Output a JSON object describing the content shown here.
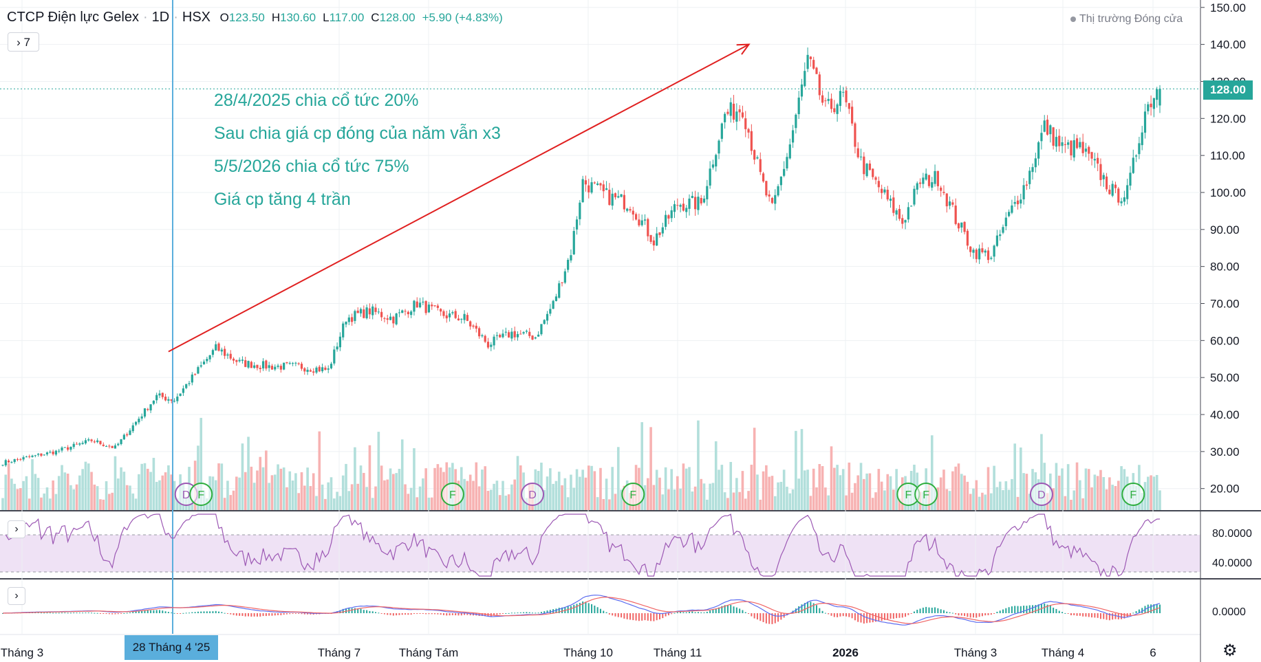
{
  "header": {
    "title": "CTCP Điện lực Gelex",
    "interval": "1D",
    "exchange": "HSX",
    "open_label": "O",
    "open_value": "123.50",
    "high_label": "H",
    "high_value": "130.60",
    "low_label": "L",
    "low_value": "117.00",
    "close_label": "C",
    "close_value": "128.00",
    "change": "+5.90 (+4.83%)"
  },
  "market_status": "Thị trường Đóng cửa",
  "collapse_label": "7",
  "annotations": [
    "28/4/2025 chia cổ tức 20%",
    "Sau chia giá cp đóng của năm vẫn x3",
    "5/5/2026 chia cổ tức 75%",
    "Giá cp tăng 4 trần"
  ],
  "last_price_label": "128.00",
  "crosshair_date_label": "28 Tháng 4 '25",
  "rsi_axis": [
    "80.0000",
    "40.0000"
  ],
  "macd_axis": [
    "0.0000"
  ],
  "colors": {
    "up": "#26a69a",
    "down": "#ef5350",
    "vol_up": "#b2dfdb",
    "vol_down": "#f7b2b2",
    "rsi_line": "#9c58b4",
    "rsi_band": "#efe2f5",
    "macd_line": "#5b6cf0",
    "signal_line": "#f06464",
    "trend_arrow": "#e02020",
    "crosshair": "#5aaedc"
  },
  "chart_data": {
    "type": "candlestick",
    "price_axis": {
      "ticks": [
        150,
        140,
        130,
        120,
        110,
        100,
        90,
        80,
        70,
        60,
        50,
        40,
        30,
        20
      ],
      "range": [
        14,
        152
      ]
    },
    "x_axis": {
      "labels": [
        "Tháng 3",
        "Tháng 7",
        "Tháng Tám",
        "Tháng 10",
        "Tháng 11",
        "2026",
        "Tháng 3",
        "Tháng 4",
        "6"
      ]
    },
    "close_anchors": [
      [
        0,
        27
      ],
      [
        18,
        30
      ],
      [
        30,
        33
      ],
      [
        38,
        31
      ],
      [
        44,
        37
      ],
      [
        52,
        45
      ],
      [
        58,
        44
      ],
      [
        64,
        50
      ],
      [
        72,
        58
      ],
      [
        80,
        54
      ],
      [
        90,
        53
      ],
      [
        100,
        53
      ],
      [
        110,
        52
      ],
      [
        116,
        66
      ],
      [
        124,
        68
      ],
      [
        132,
        66
      ],
      [
        140,
        70
      ],
      [
        148,
        67
      ],
      [
        156,
        66
      ],
      [
        164,
        59
      ],
      [
        172,
        62
      ],
      [
        180,
        61
      ],
      [
        186,
        70
      ],
      [
        192,
        84
      ],
      [
        196,
        103
      ],
      [
        204,
        99
      ],
      [
        212,
        97
      ],
      [
        220,
        87
      ],
      [
        228,
        97
      ],
      [
        236,
        97
      ],
      [
        244,
        121
      ],
      [
        250,
        123
      ],
      [
        256,
        104
      ],
      [
        260,
        95
      ],
      [
        266,
        113
      ],
      [
        272,
        136
      ],
      [
        278,
        122
      ],
      [
        284,
        126
      ],
      [
        290,
        108
      ],
      [
        298,
        99
      ],
      [
        304,
        92
      ],
      [
        310,
        103
      ],
      [
        316,
        104
      ],
      [
        322,
        93
      ],
      [
        328,
        84
      ],
      [
        334,
        83
      ],
      [
        340,
        94
      ],
      [
        346,
        103
      ],
      [
        352,
        118
      ],
      [
        358,
        112
      ],
      [
        364,
        112
      ],
      [
        370,
        106
      ],
      [
        376,
        99
      ],
      [
        380,
        100
      ],
      [
        386,
        122
      ],
      [
        390,
        128
      ]
    ],
    "events": [
      {
        "label": "D",
        "index": 62
      },
      {
        "label": "F",
        "index": 67
      },
      {
        "label": "F",
        "index": 152
      },
      {
        "label": "D",
        "index": 179
      },
      {
        "label": "F",
        "index": 213
      },
      {
        "label": "F",
        "index": 306
      },
      {
        "label": "F",
        "index": 312
      },
      {
        "label": "D",
        "index": 351
      },
      {
        "label": "F",
        "index": 382
      }
    ],
    "rsi_levels": [
      70,
      30
    ],
    "trend_arrow": {
      "from": [
        56,
        57
      ],
      "to": [
        244,
        140
      ]
    },
    "last_close": 128.0
  }
}
